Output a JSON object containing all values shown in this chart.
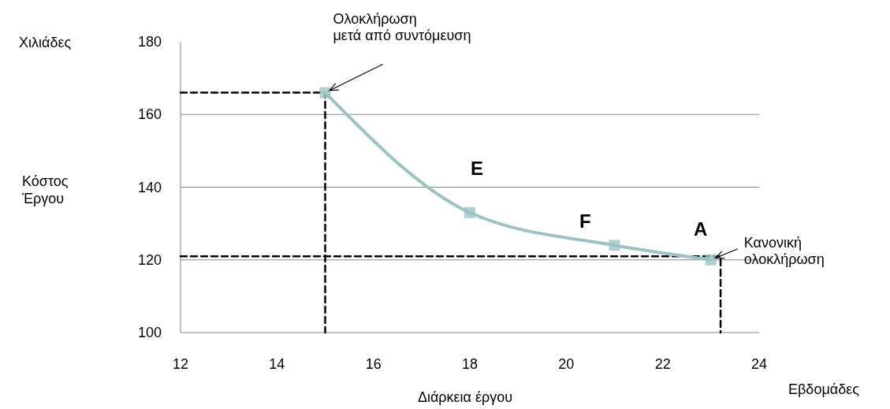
{
  "chart_data": {
    "type": "line",
    "ylabel": "Κόστος\nΈργου",
    "xlabel": "Διάρκεια έργου",
    "xlim": [
      12,
      24
    ],
    "xticks": [
      12,
      14,
      16,
      18,
      20,
      22,
      24
    ],
    "ylim": [
      100,
      180
    ],
    "yticks": [
      100,
      120,
      140,
      160,
      180
    ],
    "grid": "y",
    "series": [
      {
        "color": "#000000",
        "line_style": "dashed",
        "marker": "none",
        "x": [
          12,
          15,
          15
        ],
        "values": [
          166,
          166,
          100
        ]
      },
      {
        "color": "#000000",
        "line_style": "dashed",
        "marker": "none",
        "x": [
          12,
          23.2,
          23.2
        ],
        "values": [
          121,
          121,
          100
        ]
      },
      {
        "color": "#9cc3c4",
        "line_style": "solid",
        "marker": "square",
        "x": [
          15,
          18,
          21,
          23
        ],
        "values": [
          166,
          133,
          124,
          120
        ]
      }
    ],
    "annotations": [
      "Χιλιάδες",
      "Εβδομάδες",
      "E",
      "F",
      "A",
      "Ολοκλήρωση\nμετά από συντόμευση",
      "Κανονική\nολοκλήρωση"
    ]
  }
}
